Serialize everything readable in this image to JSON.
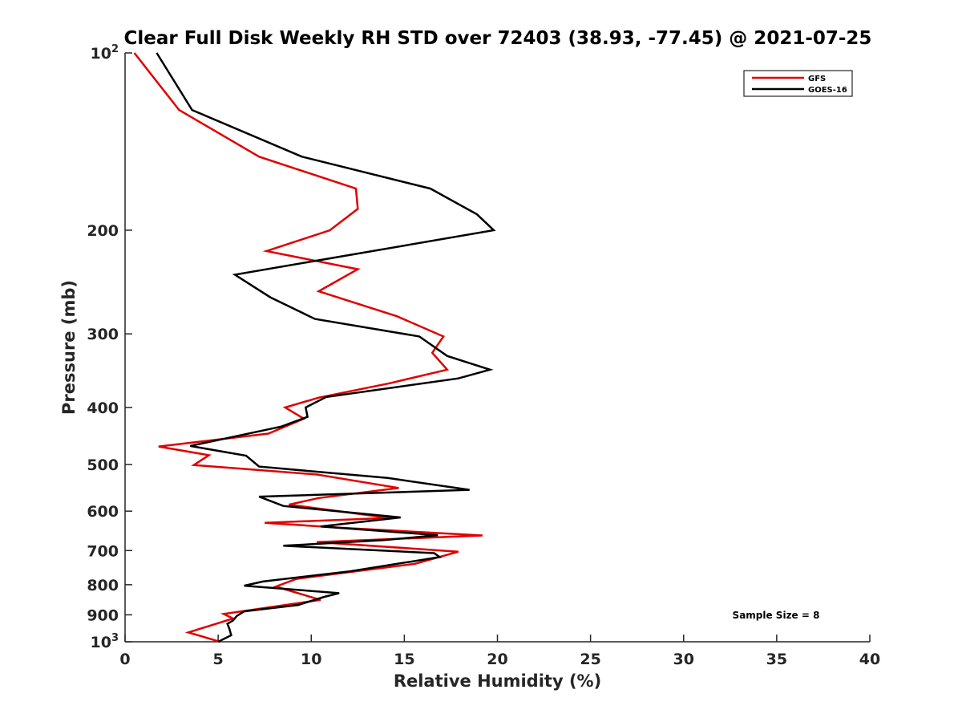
{
  "chart_data": {
    "type": "line",
    "title": "Clear Full Disk Weekly RH STD over 72403 (38.93, -77.45) @ 2021-07-25",
    "xlabel": "Relative Humidity (%)",
    "ylabel": "Pressure (mb)",
    "xlim": [
      0,
      40
    ],
    "ylim": [
      100,
      1000
    ],
    "y_scale": "log",
    "y_reversed": true,
    "x_ticks": [
      0,
      5,
      10,
      15,
      20,
      25,
      30,
      35,
      40
    ],
    "x_tick_labels": [
      "0",
      "5",
      "10",
      "15",
      "20",
      "25",
      "30",
      "35",
      "40"
    ],
    "y_ticks": [
      100,
      200,
      300,
      400,
      500,
      600,
      700,
      800,
      900,
      1000
    ],
    "y_tick_labels": [
      {
        "base": "10",
        "exp": "2"
      },
      {
        "base": "200",
        "exp": ""
      },
      {
        "base": "300",
        "exp": ""
      },
      {
        "base": "400",
        "exp": ""
      },
      {
        "base": "500",
        "exp": ""
      },
      {
        "base": "600",
        "exp": ""
      },
      {
        "base": "700",
        "exp": ""
      },
      {
        "base": "800",
        "exp": ""
      },
      {
        "base": "900",
        "exp": ""
      },
      {
        "base": "10",
        "exp": "3"
      }
    ],
    "grid": false,
    "legend_position": "top-right",
    "annotation": "Sample Size = 8",
    "series": [
      {
        "name": "GFS",
        "color": "#e00000",
        "points": [
          [
            0.5,
            100
          ],
          [
            2.9,
            125
          ],
          [
            7.2,
            150
          ],
          [
            12.4,
            170
          ],
          [
            12.5,
            184
          ],
          [
            11.0,
            200
          ],
          [
            7.6,
            217
          ],
          [
            12.5,
            233
          ],
          [
            10.4,
            254
          ],
          [
            14.6,
            280
          ],
          [
            17.1,
            303
          ],
          [
            16.5,
            323
          ],
          [
            17.3,
            345
          ],
          [
            14.2,
            364
          ],
          [
            10.4,
            385
          ],
          [
            8.6,
            400
          ],
          [
            9.6,
            418
          ],
          [
            7.7,
            443
          ],
          [
            1.8,
            466
          ],
          [
            4.5,
            482
          ],
          [
            3.7,
            501
          ],
          [
            10.3,
            520
          ],
          [
            14.7,
            548
          ],
          [
            10.4,
            570
          ],
          [
            8.8,
            585
          ],
          [
            14.2,
            616
          ],
          [
            7.5,
            628
          ],
          [
            11.5,
            640
          ],
          [
            19.2,
            660
          ],
          [
            10.3,
            677
          ],
          [
            17.9,
            703
          ],
          [
            15.6,
            737
          ],
          [
            9.2,
            782
          ],
          [
            8.1,
            806
          ],
          [
            10.5,
            849
          ],
          [
            5.3,
            897
          ],
          [
            5.8,
            913
          ],
          [
            3.4,
            964
          ],
          [
            5.1,
            1000
          ]
        ]
      },
      {
        "name": "GOES-16",
        "color": "#000000",
        "points": [
          [
            1.7,
            100
          ],
          [
            3.6,
            125
          ],
          [
            9.5,
            150
          ],
          [
            16.4,
            170
          ],
          [
            18.9,
            188
          ],
          [
            19.8,
            200
          ],
          [
            5.9,
            238
          ],
          [
            7.8,
            260
          ],
          [
            10.2,
            283
          ],
          [
            15.8,
            303
          ],
          [
            17.3,
            327
          ],
          [
            19.6,
            345
          ],
          [
            17.9,
            357
          ],
          [
            10.8,
            384
          ],
          [
            9.7,
            400
          ],
          [
            9.8,
            415
          ],
          [
            8.4,
            431
          ],
          [
            3.5,
            465
          ],
          [
            6.5,
            483
          ],
          [
            7.2,
            504
          ],
          [
            14.1,
            527
          ],
          [
            18.5,
            552
          ],
          [
            7.2,
            567
          ],
          [
            8.5,
            588
          ],
          [
            14.8,
            615
          ],
          [
            10.5,
            637
          ],
          [
            16.8,
            659
          ],
          [
            13.9,
            672
          ],
          [
            8.5,
            687
          ],
          [
            16.6,
            707
          ],
          [
            16.9,
            718
          ],
          [
            12.1,
            759
          ],
          [
            7.4,
            790
          ],
          [
            6.4,
            803
          ],
          [
            11.5,
            827
          ],
          [
            10.7,
            839
          ],
          [
            9.3,
            866
          ],
          [
            6.4,
            888
          ],
          [
            6.0,
            904
          ],
          [
            5.8,
            920
          ],
          [
            5.5,
            932
          ],
          [
            5.6,
            950
          ],
          [
            5.7,
            975
          ],
          [
            5.0,
            1000
          ]
        ]
      }
    ]
  }
}
